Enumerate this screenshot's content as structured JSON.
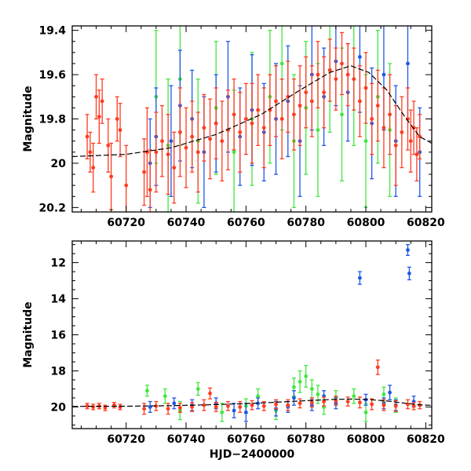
{
  "chart_data": [
    {
      "type": "scatter",
      "panel": "top",
      "title": "",
      "xlabel": "",
      "ylabel": "Magnitude",
      "xlim": [
        60702,
        60822
      ],
      "ylim": [
        19.38,
        20.22
      ],
      "y_inverted": true,
      "xticks": [
        60720,
        60740,
        60760,
        60780,
        60800,
        60820
      ],
      "yticks": [
        19.4,
        19.6,
        19.8,
        20,
        20.2
      ],
      "ytick_labels": [
        "19.4",
        "19.6",
        "19.8",
        "20",
        "20.2"
      ],
      "series": [
        {
          "color": "#ff3b1f",
          "points": [
            [
              60707,
              19.88,
              0.1
            ],
            [
              60708,
              19.95,
              0.09
            ],
            [
              60709,
              20.02,
              0.11
            ],
            [
              60710,
              19.7,
              0.1
            ],
            [
              60711,
              19.79,
              0.12
            ],
            [
              60712,
              19.72,
              0.1
            ],
            [
              60714,
              19.92,
              0.12
            ],
            [
              60715,
              20.06,
              0.15
            ],
            [
              60717,
              19.8,
              0.1
            ],
            [
              60718,
              19.85,
              0.12
            ],
            [
              60720,
              20.1,
              0.18
            ],
            [
              60726,
              20.04,
              0.15
            ],
            [
              60727,
              19.95,
              0.2
            ],
            [
              60728,
              20.12,
              0.18
            ],
            [
              60730,
              19.95,
              0.18
            ],
            [
              60732,
              19.9,
              0.16
            ],
            [
              60734,
              19.96,
              0.18
            ],
            [
              60736,
              20.02,
              0.16
            ],
            [
              60738,
              19.86,
              0.2
            ],
            [
              60740,
              19.93,
              0.18
            ],
            [
              60742,
              19.88,
              0.16
            ],
            [
              60744,
              19.95,
              0.18
            ],
            [
              60746,
              19.84,
              0.15
            ],
            [
              60748,
              19.89,
              0.18
            ],
            [
              60750,
              19.82,
              0.16
            ],
            [
              60752,
              19.9,
              0.18
            ],
            [
              60754,
              19.85,
              0.18
            ],
            [
              60756,
              19.78,
              0.16
            ],
            [
              60758,
              19.86,
              0.18
            ],
            [
              60760,
              19.8,
              0.16
            ],
            [
              60762,
              19.82,
              0.18
            ],
            [
              60764,
              19.76,
              0.16
            ],
            [
              60766,
              19.84,
              0.18
            ],
            [
              60768,
              19.76,
              0.16
            ],
            [
              60770,
              19.72,
              0.16
            ],
            [
              60772,
              19.8,
              0.18
            ],
            [
              60774,
              19.7,
              0.16
            ],
            [
              60776,
              19.78,
              0.16
            ],
            [
              60778,
              19.74,
              0.18
            ],
            [
              60780,
              19.68,
              0.16
            ],
            [
              60782,
              19.72,
              0.16
            ],
            [
              60784,
              19.6,
              0.15
            ],
            [
              60786,
              19.68,
              0.16
            ],
            [
              60788,
              19.58,
              0.14
            ],
            [
              60790,
              19.62,
              0.14
            ],
            [
              60792,
              19.55,
              0.14
            ],
            [
              60794,
              19.6,
              0.14
            ],
            [
              60796,
              19.62,
              0.14
            ],
            [
              60798,
              19.72,
              0.16
            ],
            [
              60800,
              19.66,
              0.16
            ],
            [
              60802,
              19.8,
              0.16
            ],
            [
              60804,
              19.74,
              0.16
            ],
            [
              60806,
              19.84,
              0.18
            ],
            [
              60808,
              19.78,
              0.18
            ],
            [
              60810,
              19.92,
              0.18
            ],
            [
              60812,
              19.86,
              0.16
            ],
            [
              60814,
              19.8,
              0.14
            ],
            [
              60815,
              19.9,
              0.14
            ],
            [
              60816,
              19.84,
              0.12
            ],
            [
              60817,
              19.96,
              0.12
            ],
            [
              60818,
              19.88,
              0.1
            ]
          ]
        },
        {
          "color": "#1f57e6",
          "points": [
            [
              60728,
              20.0,
              0.2
            ],
            [
              60730,
              19.88,
              0.22
            ],
            [
              60735,
              19.9,
              0.25
            ],
            [
              60738,
              19.74,
              0.25
            ],
            [
              60742,
              19.8,
              0.22
            ],
            [
              60746,
              19.95,
              0.25
            ],
            [
              60750,
              19.82,
              0.22
            ],
            [
              60754,
              19.7,
              0.25
            ],
            [
              60758,
              19.88,
              0.22
            ],
            [
              60762,
              19.76,
              0.25
            ],
            [
              60766,
              19.86,
              0.22
            ],
            [
              60770,
              19.8,
              0.25
            ],
            [
              60774,
              19.72,
              0.25
            ],
            [
              60778,
              19.9,
              0.25
            ],
            [
              60782,
              19.6,
              0.25
            ],
            [
              60786,
              19.7,
              0.22
            ],
            [
              60790,
              19.54,
              0.2
            ],
            [
              60794,
              19.68,
              0.22
            ],
            [
              60798,
              19.52,
              0.25
            ],
            [
              60802,
              19.82,
              0.25
            ],
            [
              60806,
              19.6,
              0.25
            ],
            [
              60810,
              19.9,
              0.25
            ],
            [
              60814,
              19.55,
              0.25
            ],
            [
              60818,
              19.95,
              0.2
            ]
          ]
        },
        {
          "color": "#3ee83e",
          "points": [
            [
              60730,
              19.7,
              0.3
            ],
            [
              60734,
              19.92,
              0.3
            ],
            [
              60738,
              19.62,
              0.3
            ],
            [
              60744,
              19.9,
              0.28
            ],
            [
              60750,
              19.75,
              0.3
            ],
            [
              60756,
              19.95,
              0.28
            ],
            [
              60762,
              19.8,
              0.3
            ],
            [
              60768,
              19.7,
              0.3
            ],
            [
              60772,
              19.55,
              0.3
            ],
            [
              60776,
              19.9,
              0.3
            ],
            [
              60780,
              19.75,
              0.3
            ],
            [
              60784,
              19.85,
              0.3
            ],
            [
              60788,
              19.58,
              0.28
            ],
            [
              60792,
              19.78,
              0.3
            ],
            [
              60796,
              19.62,
              0.3
            ],
            [
              60800,
              19.9,
              0.3
            ],
            [
              60804,
              19.7,
              0.3
            ],
            [
              60808,
              19.85,
              0.3
            ]
          ]
        }
      ],
      "model_curve": [
        [
          60702,
          19.97
        ],
        [
          60720,
          19.96
        ],
        [
          60735,
          19.93
        ],
        [
          60750,
          19.87
        ],
        [
          60765,
          19.78
        ],
        [
          60778,
          19.67
        ],
        [
          60788,
          19.59
        ],
        [
          60795,
          19.56
        ],
        [
          60801,
          19.59
        ],
        [
          60807,
          19.67
        ],
        [
          60813,
          19.79
        ],
        [
          60818,
          19.88
        ],
        [
          60822,
          19.91
        ]
      ]
    },
    {
      "type": "scatter",
      "panel": "bottom",
      "title": "",
      "xlabel": "HJD−2400000",
      "ylabel": "Magnitude",
      "xlim": [
        60702,
        60822
      ],
      "ylim": [
        10.8,
        21.2
      ],
      "y_inverted": true,
      "xticks": [
        60720,
        60740,
        60760,
        60780,
        60800,
        60820
      ],
      "yticks": [
        12,
        14,
        16,
        18,
        20
      ],
      "ytick_labels": [
        "12",
        "14",
        "16",
        "18",
        "20"
      ],
      "series": [
        {
          "color": "#ff3b1f",
          "points": [
            [
              60707,
              19.95,
              0.15
            ],
            [
              60709,
              20.0,
              0.15
            ],
            [
              60711,
              19.95,
              0.15
            ],
            [
              60713,
              20.05,
              0.15
            ],
            [
              60716,
              19.9,
              0.15
            ],
            [
              60718,
              20.0,
              0.15
            ],
            [
              60726,
              20.1,
              0.3
            ],
            [
              60730,
              19.95,
              0.25
            ],
            [
              60734,
              20.1,
              0.3
            ],
            [
              60738,
              20.05,
              0.25
            ],
            [
              60742,
              20.0,
              0.25
            ],
            [
              60746,
              19.9,
              0.3
            ],
            [
              60748,
              19.25,
              0.3
            ],
            [
              60750,
              20.0,
              0.25
            ],
            [
              60754,
              19.95,
              0.25
            ],
            [
              60758,
              20.0,
              0.3
            ],
            [
              60762,
              19.9,
              0.25
            ],
            [
              60766,
              19.95,
              0.25
            ],
            [
              60770,
              19.85,
              0.25
            ],
            [
              60774,
              19.9,
              0.3
            ],
            [
              60778,
              19.8,
              0.25
            ],
            [
              60782,
              19.75,
              0.25
            ],
            [
              60786,
              19.7,
              0.25
            ],
            [
              60790,
              19.65,
              0.25
            ],
            [
              60794,
              19.7,
              0.25
            ],
            [
              60798,
              19.75,
              0.3
            ],
            [
              60802,
              19.85,
              0.3
            ],
            [
              60804,
              17.8,
              0.4
            ],
            [
              60806,
              19.9,
              0.3
            ],
            [
              60810,
              19.95,
              0.3
            ],
            [
              60814,
              19.85,
              0.25
            ],
            [
              60816,
              19.95,
              0.2
            ],
            [
              60818,
              19.9,
              0.2
            ]
          ]
        },
        {
          "color": "#1f57e6",
          "points": [
            [
              60728,
              20.0,
              0.3
            ],
            [
              60736,
              19.8,
              0.3
            ],
            [
              60742,
              19.9,
              0.3
            ],
            [
              60750,
              19.8,
              0.3
            ],
            [
              60756,
              20.2,
              0.4
            ],
            [
              60760,
              20.3,
              0.5
            ],
            [
              60764,
              19.8,
              0.3
            ],
            [
              60770,
              20.1,
              0.4
            ],
            [
              60774,
              20.0,
              0.3
            ],
            [
              60776,
              19.5,
              0.4
            ],
            [
              60782,
              19.9,
              0.3
            ],
            [
              60786,
              19.4,
              0.3
            ],
            [
              60790,
              19.8,
              0.3
            ],
            [
              60798,
              12.85,
              0.35
            ],
            [
              60800,
              19.6,
              0.3
            ],
            [
              60806,
              19.8,
              0.3
            ],
            [
              60808,
              19.2,
              0.4
            ],
            [
              60810,
              19.9,
              0.3
            ],
            [
              60814,
              11.3,
              0.3
            ],
            [
              60814.5,
              12.6,
              0.35
            ],
            [
              60816,
              19.7,
              0.3
            ]
          ]
        },
        {
          "color": "#3ee83e",
          "points": [
            [
              60727,
              19.1,
              0.3
            ],
            [
              60733,
              19.4,
              0.4
            ],
            [
              60738,
              20.2,
              0.5
            ],
            [
              60744,
              19.0,
              0.35
            ],
            [
              60752,
              20.3,
              0.5
            ],
            [
              60760,
              19.95,
              0.4
            ],
            [
              60764,
              19.4,
              0.4
            ],
            [
              60770,
              20.2,
              0.5
            ],
            [
              60776,
              18.9,
              0.5
            ],
            [
              60778,
              18.6,
              0.6
            ],
            [
              60780,
              18.3,
              0.6
            ],
            [
              60782,
              19.0,
              0.5
            ],
            [
              60784,
              19.3,
              0.5
            ],
            [
              60786,
              20.0,
              0.4
            ],
            [
              60790,
              19.5,
              0.4
            ],
            [
              60796,
              19.4,
              0.4
            ],
            [
              60800,
              20.3,
              0.5
            ],
            [
              60806,
              19.3,
              0.4
            ],
            [
              60810,
              19.9,
              0.4
            ]
          ]
        }
      ],
      "model_curve": [
        [
          60702,
          19.97
        ],
        [
          60720,
          19.96
        ],
        [
          60735,
          19.93
        ],
        [
          60750,
          19.87
        ],
        [
          60765,
          19.78
        ],
        [
          60778,
          19.67
        ],
        [
          60788,
          19.59
        ],
        [
          60795,
          19.56
        ],
        [
          60801,
          19.59
        ],
        [
          60807,
          19.67
        ],
        [
          60813,
          19.79
        ],
        [
          60818,
          19.88
        ],
        [
          60822,
          19.91
        ]
      ]
    }
  ]
}
